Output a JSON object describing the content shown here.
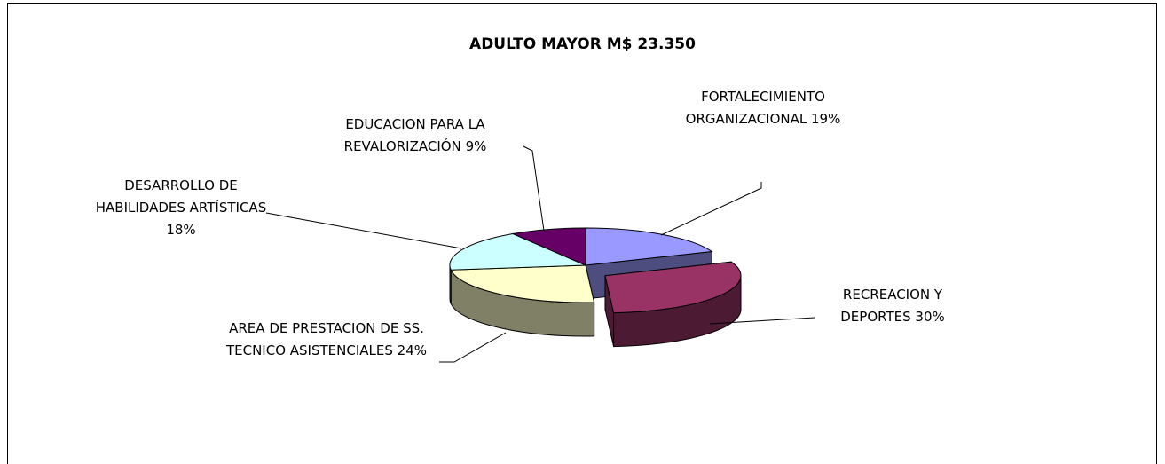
{
  "chart_data": {
    "type": "pie",
    "title": "ADULTO MAYOR M$ 23.350",
    "categories": [
      "FORTALECIMIENTO ORGANIZACIONAL",
      "RECREACION Y DEPORTES",
      "AREA DE PRESTACION DE SS. TECNICO ASISTENCIALES",
      "DESARROLLO DE HABILIDADES ARTÍSTICAS",
      "EDUCACION PARA LA REVALORIZACIÓN"
    ],
    "values": [
      19,
      30,
      24,
      18,
      9
    ],
    "value_labels": [
      "19%",
      "30%",
      "24%",
      "18%",
      "9%"
    ],
    "colors": [
      "#9999ff",
      "#993366",
      "#ffffcc",
      "#ccffff",
      "#660066"
    ]
  }
}
